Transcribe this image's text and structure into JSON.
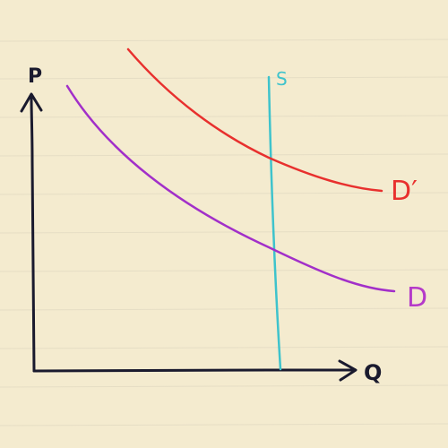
{
  "axes": {
    "y_label": "P",
    "x_label": "Q"
  },
  "curves": {
    "supply": {
      "label": "S",
      "color": "#3ec3cc"
    },
    "demand": {
      "label": "D",
      "color": "#a22fc9"
    },
    "demand_shifted": {
      "label": "D′",
      "color": "#e8302e"
    }
  },
  "colors": {
    "paper": "#f4ebcf",
    "rule_line": "#e2dac2",
    "axis": "#1a1a2e"
  }
}
